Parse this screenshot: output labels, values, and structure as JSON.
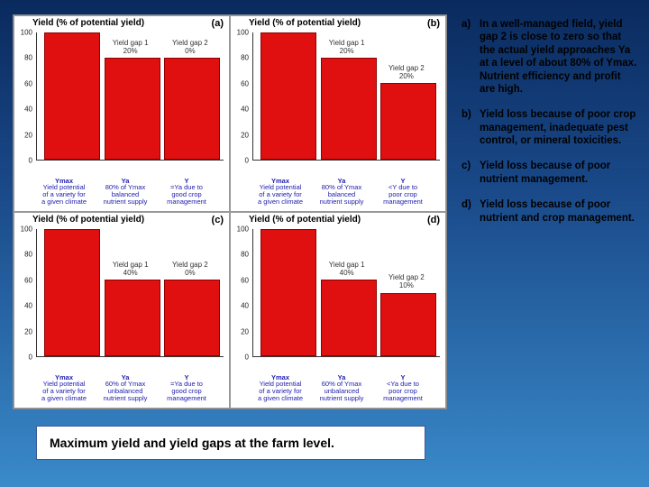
{
  "background_gradient": [
    "#0a2a5e",
    "#1a4a8a",
    "#2a6aaa",
    "#3a8aca"
  ],
  "chart_common": {
    "axis_title": "Yield (% of potential yield)",
    "ylim": [
      0,
      100
    ],
    "yticks": [
      0,
      20,
      40,
      60,
      80,
      100
    ],
    "bar_color": "#e01010",
    "bar_border": "#900000",
    "anno_color": "#2020b0",
    "font_family": "Arial",
    "anno_fontsize": 7.5,
    "label_fontsize": 10
  },
  "panels": {
    "a": {
      "label": "(a)",
      "bars": [
        100,
        80,
        80
      ],
      "gap1": "Yield gap 1\n20%",
      "gap2": "Yield gap 2\n0%",
      "anno": [
        "Ymax\nYield potential\nof a variety for\na given climate",
        "Ya\n80% of Ymax\nbalanced\nnutrient supply",
        "Y\n=Ya due to\ngood crop\nmanagement"
      ]
    },
    "b": {
      "label": "(b)",
      "bars": [
        100,
        80,
        60
      ],
      "gap1": "Yield gap 1\n20%",
      "gap2": "Yield gap 2\n20%",
      "anno": [
        "Ymax\nYield potential\nof a variety for\na given climate",
        "Ya\n80% of Ymax\nbalanced\nnutrient supply",
        "Y\n<Y due to\npoor crop\nmanagement"
      ]
    },
    "c": {
      "label": "(c)",
      "bars": [
        100,
        60,
        60
      ],
      "gap1": "Yield gap 1\n40%",
      "gap2": "Yield gap 2\n0%",
      "anno": [
        "Ymax\nYield potential\nof a variety for\na given climate",
        "Ya\n60% of Ymax\nunbalanced\nnutrient supply",
        "Y\n=Ya due to\ngood crop\nmanagement"
      ]
    },
    "d": {
      "label": "(d)",
      "bars": [
        100,
        60,
        50
      ],
      "gap1": "Yield gap 1\n40%",
      "gap2": "Yield gap 2\n10%",
      "anno": [
        "Ymax\nYield potential\nof a variety for\na given climate",
        "Ya\n60% of Ymax\nunbalanced\nnutrient supply",
        "Y\n<Ya due to\npoor crop\nmanagement"
      ]
    }
  },
  "caption": "Maximum yield and yield gaps at the farm level.",
  "notes": [
    {
      "key": "a)",
      "text": "In a well-managed field, yield gap 2 is close to zero so that the actual yield approaches Ya at a level of about 80% of Ymax. Nutrient efficiency and profit are high."
    },
    {
      "key": "b)",
      "text": "Yield loss because of poor crop management, inadequate pest control, or mineral toxicities."
    },
    {
      "key": "c)",
      "text": "Yield loss because of poor nutrient management."
    },
    {
      "key": "d)",
      "text": "Yield loss because of poor nutrient and crop management."
    }
  ]
}
